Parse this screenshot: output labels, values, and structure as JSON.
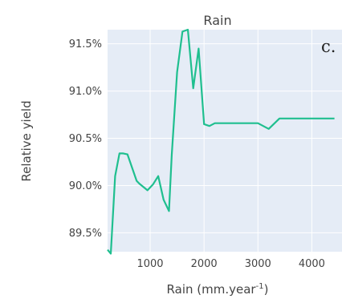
{
  "chart_data": {
    "type": "line",
    "title": "Rain",
    "panel_label": "c.",
    "xlabel": "Rain (mm.year",
    "xlabel_sup": "-1",
    "xlabel_close": ")",
    "ylabel": "Relative yield",
    "xlim": [
      210,
      4560
    ],
    "ylim": [
      89.3,
      91.65
    ],
    "x_ticks": [
      1000,
      2000,
      3000,
      4000
    ],
    "x_tick_labels": [
      "1000",
      "2000",
      "3000",
      "4000"
    ],
    "y_ticks": [
      89.5,
      90.0,
      90.5,
      91.0,
      91.5
    ],
    "y_tick_labels": [
      "89.5%",
      "90.0%",
      "90.5%",
      "91.0%",
      "91.5%"
    ],
    "grid": true,
    "plot_bg": "#e5ecf6",
    "series": [
      {
        "color": "#1fbf8f",
        "x": [
          210,
          270,
          350,
          430,
          500,
          580,
          750,
          800,
          950,
          1050,
          1150,
          1250,
          1350,
          1400,
          1500,
          1600,
          1700,
          1800,
          1900,
          2000,
          2100,
          2200,
          3000,
          3200,
          3400,
          4420
        ],
        "y": [
          89.32,
          89.28,
          90.1,
          90.34,
          90.34,
          90.33,
          90.05,
          90.02,
          89.95,
          90.01,
          90.1,
          89.85,
          89.73,
          90.32,
          91.2,
          91.63,
          91.65,
          91.03,
          91.45,
          90.65,
          90.63,
          90.66,
          90.66,
          90.6,
          90.71,
          90.71
        ]
      }
    ]
  }
}
